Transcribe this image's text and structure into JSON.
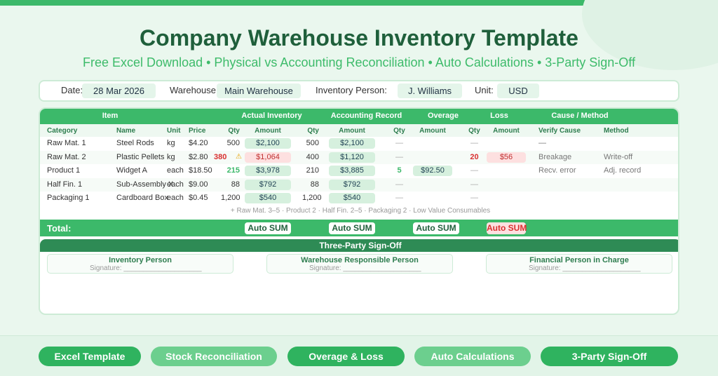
{
  "header": {
    "title": "Company Warehouse Inventory Template",
    "subtitle": "Free Excel Download • Physical vs Accounting Reconciliation • Auto Calculations • 3-Party Sign-Off"
  },
  "info": [
    {
      "label": "Date:",
      "value": "28 Mar 2026"
    },
    {
      "label": "Warehouse:",
      "value": "Main Warehouse"
    },
    {
      "label": "Inventory Person:",
      "value": "J. Williams"
    },
    {
      "label": "Unit:",
      "value": "USD"
    }
  ],
  "table": {
    "groups": [
      "Item",
      "Actual Inventory",
      "Accounting Record",
      "Overage",
      "Loss",
      "Cause / Method"
    ],
    "columns": [
      "Category",
      "Name",
      "Unit",
      "Price",
      "Qty",
      "Amount",
      "Qty",
      "Amount",
      "Qty",
      "Amount",
      "Qty",
      "Amount",
      "Verify Cause",
      "Method"
    ],
    "rows": [
      [
        "Raw Mat. 1",
        "Steel Rods",
        "kg",
        "$4.20",
        "500",
        "$2,100",
        "500",
        "$2,100",
        "—",
        null,
        "—",
        null,
        "—",
        null
      ],
      [
        "Raw Mat. 2",
        "Plastic Pellets",
        "kg",
        "$2.80",
        "380",
        "$1,064",
        "400",
        "$1,120",
        "—",
        null,
        "20",
        "$56",
        "Breakage",
        "Write-off"
      ],
      [
        "Product 1",
        "Widget A",
        "each",
        "$18.50",
        "215",
        "$3,978",
        "210",
        "$3,885",
        "5",
        "$92.50",
        "—",
        null,
        "Recv. error",
        "Adj. record"
      ],
      [
        "Half Fin. 1",
        "Sub-Assembly X",
        "each",
        "$9.00",
        "88",
        "$792",
        "88",
        "$792",
        "—",
        null,
        "—",
        null,
        null,
        null
      ],
      [
        "Packaging 1",
        "Cardboard Box",
        "each",
        "$0.45",
        "1,200",
        "$540",
        "1,200",
        "$540",
        "—",
        null,
        "—",
        null,
        null,
        null
      ]
    ],
    "note": "+ Raw Mat. 3–5 · Product 2 · Half Fin. 2–5 · Packaging 2 · Low Value Consumables",
    "total": {
      "label": "Total:",
      "cells": [
        "Auto SUM",
        "Auto SUM",
        "Auto SUM",
        "Auto SUM"
      ]
    }
  },
  "signoff": {
    "title": "Three-Party Sign-Off",
    "parties": [
      {
        "role": "Inventory Person",
        "signature": "Signature: ____________________"
      },
      {
        "role": "Warehouse Responsible Person",
        "signature": "Signature: ____________________"
      },
      {
        "role": "Financial Person in Charge",
        "signature": "Signature: ____________________"
      }
    ]
  },
  "buttons": [
    "Excel Template",
    "Stock Reconciliation",
    "Overage & Loss",
    "Auto Calculations",
    "3-Party Sign-Off"
  ]
}
